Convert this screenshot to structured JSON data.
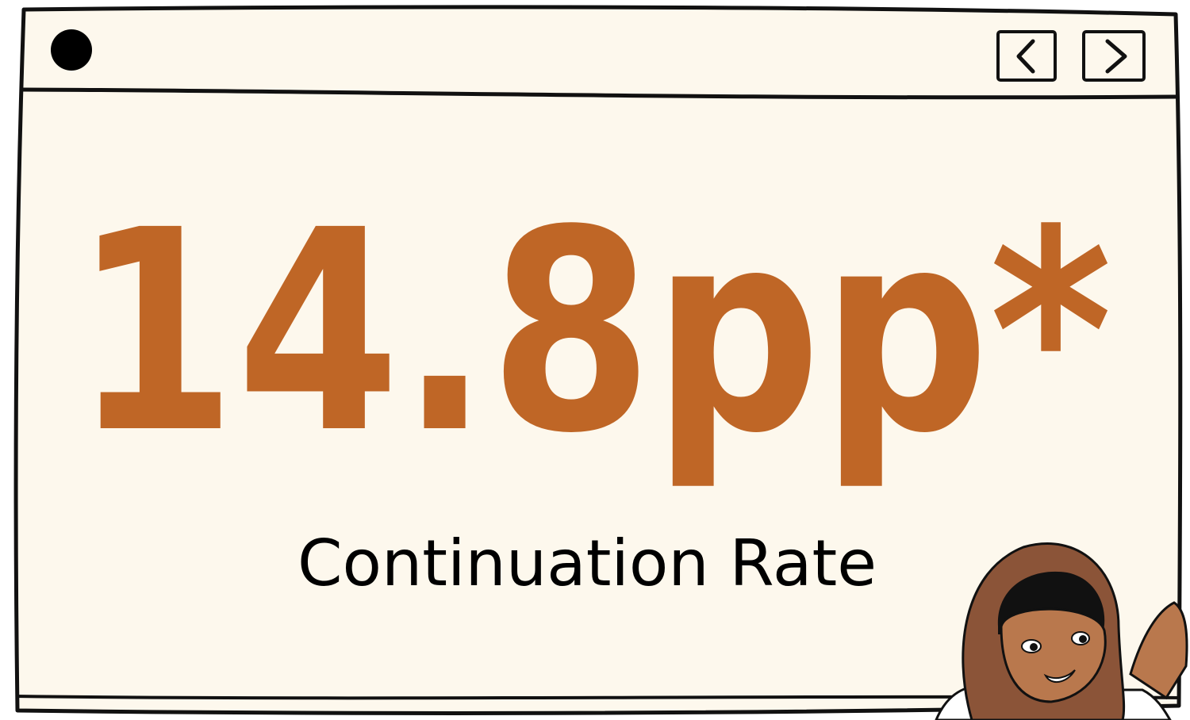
{
  "stat": {
    "value": "14.8pp*",
    "label": "Continuation Rate"
  }
}
